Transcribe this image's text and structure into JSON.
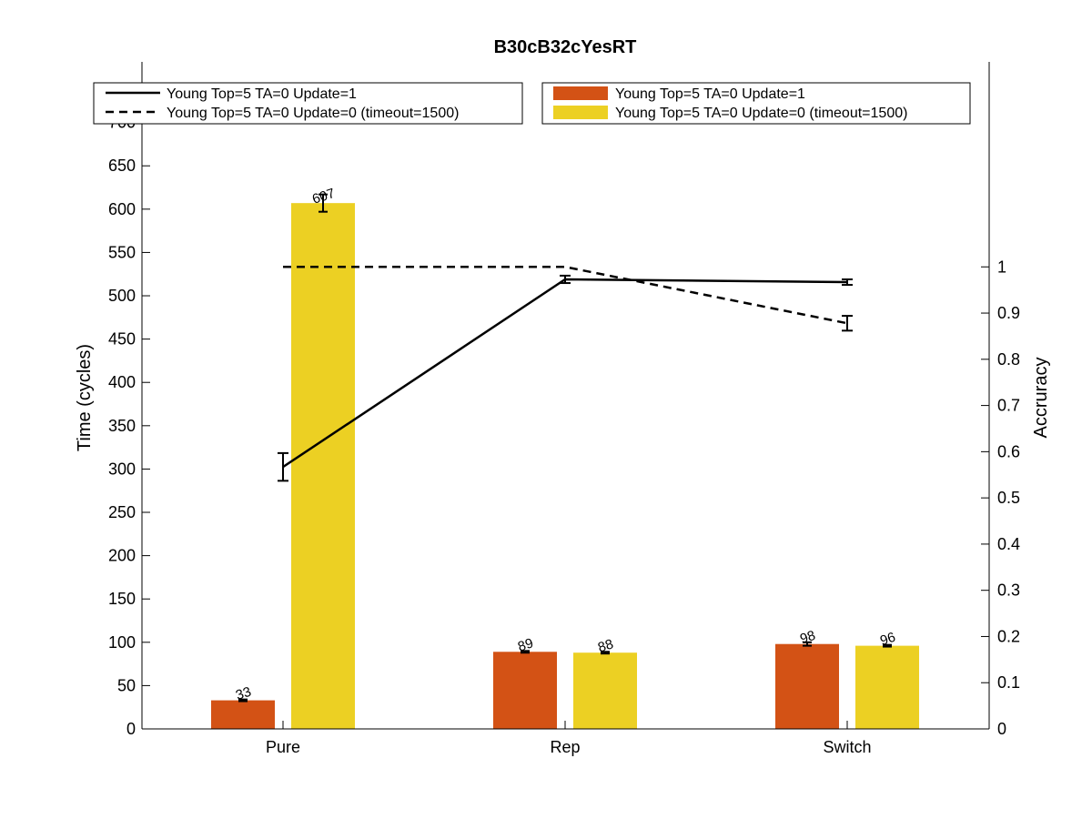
{
  "chart_data": {
    "type": "bar",
    "title": "B30cB32cYesRT",
    "categories": [
      "Pure",
      "Rep",
      "Switch"
    ],
    "left_axis": {
      "label": "Time (cycles)",
      "range": [
        0,
        770
      ],
      "ticks": [
        0,
        50,
        100,
        150,
        200,
        250,
        300,
        350,
        400,
        450,
        500,
        550,
        600,
        650,
        700
      ]
    },
    "right_axis": {
      "label": "Accruracy",
      "range": [
        0,
        1.4437
      ],
      "ticks": [
        0,
        0.1,
        0.2,
        0.3,
        0.4,
        0.5,
        0.6,
        0.7,
        0.8,
        0.9,
        1
      ]
    },
    "bar_series": [
      {
        "name": "Young Top=5 TA=0 Update=1",
        "color": "#D35215",
        "values": [
          33,
          89,
          98
        ],
        "labels": [
          "33",
          "89",
          "98"
        ],
        "errors": [
          1,
          1,
          2
        ]
      },
      {
        "name": "Young Top=5 TA=0 Update=0 (timeout=1500)",
        "color": "#ECD023",
        "values": [
          607,
          88,
          96
        ],
        "labels": [
          "607",
          "88",
          "96"
        ],
        "errors": [
          10,
          1,
          1
        ]
      }
    ],
    "line_series": [
      {
        "name": "Young Top=5 TA=0 Update=1",
        "style": "solid",
        "color": "#000000",
        "values": [
          0.567,
          0.973,
          0.967
        ],
        "errors": [
          0.03,
          0.008,
          0.006
        ]
      },
      {
        "name": "Young Top=5 TA=0 Update=0 (timeout=1500)",
        "style": "dashed",
        "color": "#000000",
        "values": [
          1.0,
          1.0,
          0.878
        ],
        "errors": [
          0,
          0,
          0.016
        ]
      }
    ],
    "grid": false,
    "legend_placement": [
      "top-left (lines)",
      "top-right (bars)"
    ]
  }
}
